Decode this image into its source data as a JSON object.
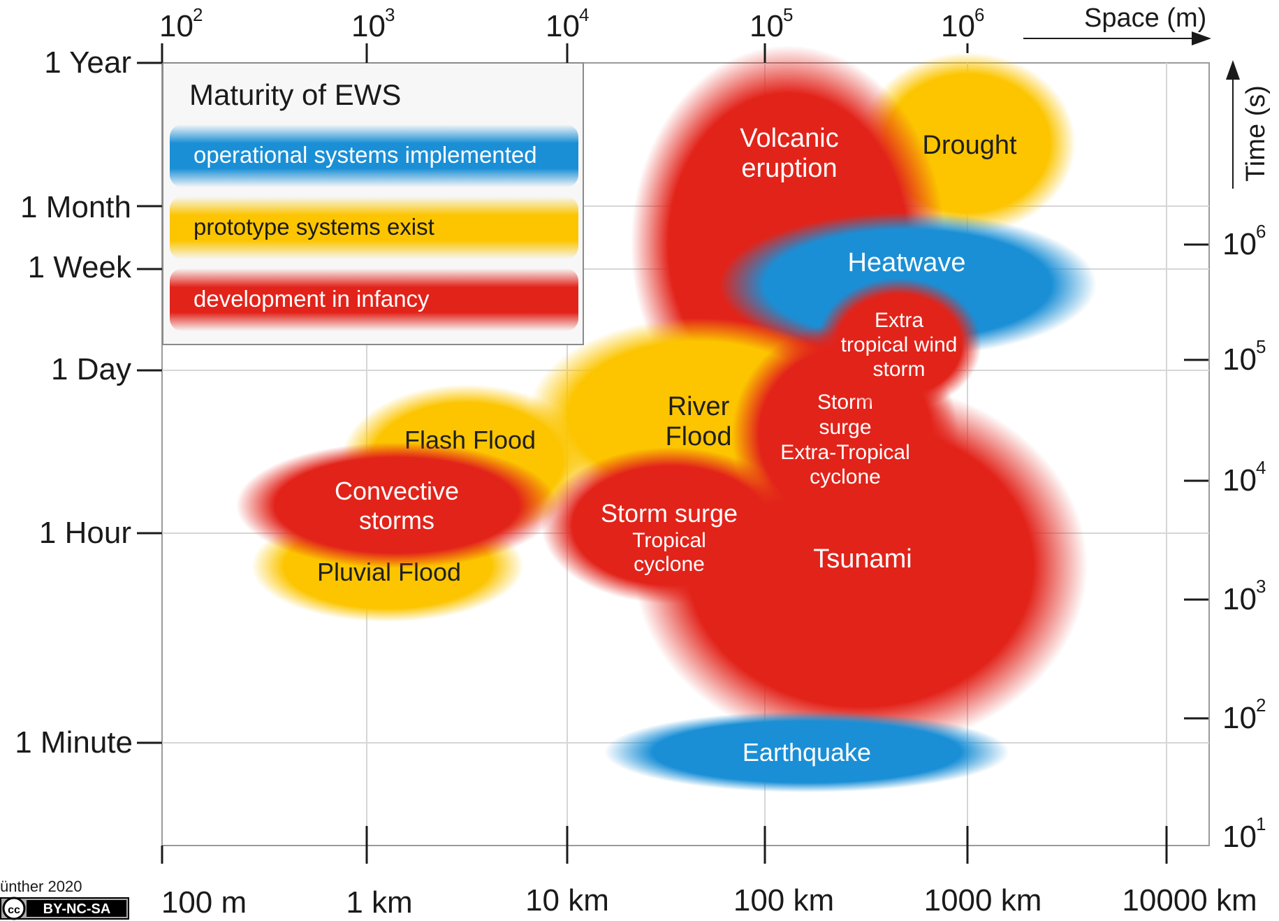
{
  "legend": {
    "title": "Maturity of EWS",
    "items": [
      {
        "label": "operational systems implemented",
        "color": "#1a8fd6"
      },
      {
        "label": "prototype systems exist",
        "color": "#fcc500"
      },
      {
        "label": "development in infancy",
        "color": "#e2231a"
      }
    ]
  },
  "axes": {
    "space_title": "Space (m)",
    "time_title": "Time (s)",
    "top_ticks": [
      {
        "base": "10",
        "exp": "2"
      },
      {
        "base": "10",
        "exp": "3"
      },
      {
        "base": "10",
        "exp": "4"
      },
      {
        "base": "10",
        "exp": "5"
      },
      {
        "base": "10",
        "exp": "6"
      }
    ],
    "bottom_ticks": [
      "100 m",
      "1 km",
      "10 km",
      "100 km",
      "1000 km",
      "10000 km"
    ],
    "left_ticks": [
      "1 Year",
      "1 Month",
      "1 Week",
      "1 Day",
      "1 Hour",
      "1 Minute"
    ],
    "right_ticks": [
      {
        "base": "10",
        "exp": "6"
      },
      {
        "base": "10",
        "exp": "5"
      },
      {
        "base": "10",
        "exp": "4"
      },
      {
        "base": "10",
        "exp": "3"
      },
      {
        "base": "10",
        "exp": "2"
      },
      {
        "base": "10",
        "exp": "1"
      }
    ]
  },
  "hazards": [
    {
      "id": "drought",
      "lines": [
        "Drought"
      ],
      "maturity": "prototype"
    },
    {
      "id": "volcanic-eruption",
      "lines": [
        "Volcanic",
        "eruption"
      ],
      "maturity": "infancy"
    },
    {
      "id": "tsunami",
      "lines": [
        "Tsunami"
      ],
      "maturity": "infancy"
    },
    {
      "id": "heatwave",
      "lines": [
        "Heatwave"
      ],
      "maturity": "operational"
    },
    {
      "id": "river-flood",
      "lines": [
        "River",
        "Flood"
      ],
      "maturity": "prototype"
    },
    {
      "id": "flash-flood",
      "lines": [
        "Flash Flood"
      ],
      "maturity": "prototype"
    },
    {
      "id": "pluvial-flood",
      "lines": [
        "Pluvial Flood"
      ],
      "maturity": "prototype"
    },
    {
      "id": "convective-storms",
      "lines": [
        "Convective",
        "storms"
      ],
      "maturity": "infancy"
    },
    {
      "id": "storm-surge-tropical-cyclone",
      "lines": [
        "Storm surge",
        "Tropical",
        "cyclone"
      ],
      "maturity": "infancy"
    },
    {
      "id": "storm-surge-extra-tropical-cyclone",
      "lines": [
        "Storm",
        "surge",
        "Extra-Tropical",
        "cyclone"
      ],
      "maturity": "infancy"
    },
    {
      "id": "extra-tropical-wind-storm",
      "lines": [
        "Extra",
        "tropical wind",
        "storm"
      ],
      "maturity": "infancy"
    },
    {
      "id": "earthquake",
      "lines": [
        "Earthquake"
      ],
      "maturity": "operational"
    }
  ],
  "credit": {
    "text": "ünther 2020",
    "license": "BY-NC-SA",
    "cc": "cc"
  }
}
